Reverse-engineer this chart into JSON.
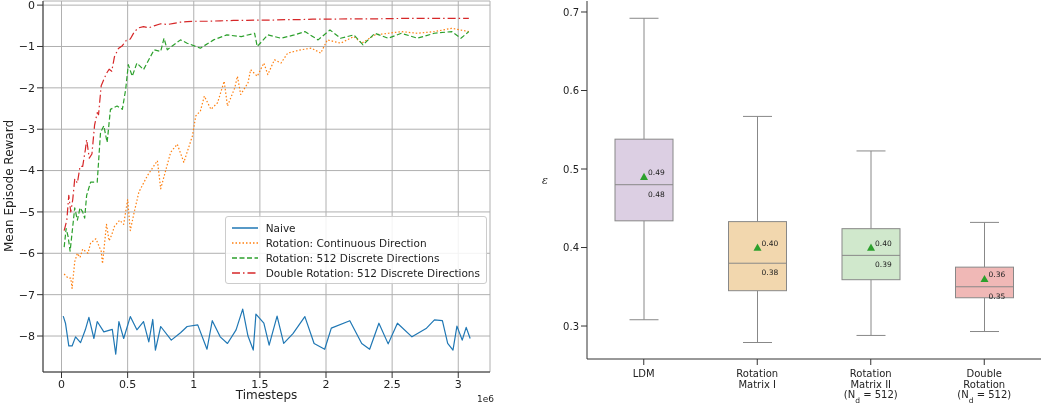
{
  "chart_data": [
    {
      "type": "line",
      "xlabel": "Timesteps",
      "ylabel": "Mean Episode Reward",
      "annotations": [
        "1e6"
      ],
      "xlim": [
        -0.14,
        3.24
      ],
      "xticks": [
        0,
        0.5,
        1,
        1.5,
        2,
        2.5,
        3
      ],
      "ylim": [
        -8.87,
        0.1
      ],
      "yticks": [
        -8,
        -7,
        -6,
        -5,
        -4,
        -3,
        -2,
        -1,
        0
      ],
      "grid": true,
      "legend": "right",
      "series": [
        {
          "name": "Naive",
          "color": "#1f77b4",
          "line_style": "solid",
          "x": [
            0.013,
            0.03,
            0.055,
            0.08,
            0.106,
            0.144,
            0.18,
            0.207,
            0.245,
            0.27,
            0.32,
            0.384,
            0.41,
            0.434,
            0.47,
            0.52,
            0.57,
            0.62,
            0.66,
            0.69,
            0.71,
            0.75,
            0.83,
            0.9,
            0.95,
            1.03,
            1.1,
            1.14,
            1.2,
            1.255,
            1.32,
            1.37,
            1.41,
            1.45,
            1.47,
            1.53,
            1.57,
            1.63,
            1.68,
            1.75,
            1.84,
            1.91,
            1.99,
            2.04,
            2.18,
            2.27,
            2.33,
            2.4,
            2.47,
            2.54,
            2.65,
            2.76,
            2.82,
            2.88,
            2.92,
            2.96,
            2.99,
            3.03,
            3.06,
            3.09
          ],
          "values": [
            -7.52,
            -7.69,
            -8.24,
            -8.24,
            -8.02,
            -8.16,
            -7.85,
            -7.55,
            -8.06,
            -7.65,
            -7.9,
            -7.84,
            -8.44,
            -7.65,
            -8.06,
            -7.53,
            -7.85,
            -7.65,
            -8.14,
            -7.6,
            -8.34,
            -7.77,
            -8.1,
            -7.92,
            -7.77,
            -7.73,
            -8.32,
            -7.63,
            -8.02,
            -8.18,
            -7.85,
            -7.35,
            -8.0,
            -8.34,
            -7.47,
            -7.69,
            -8.22,
            -7.52,
            -8.18,
            -7.94,
            -7.53,
            -8.18,
            -8.32,
            -7.81,
            -7.63,
            -8.18,
            -8.32,
            -7.69,
            -8.19,
            -7.69,
            -8.02,
            -7.81,
            -7.61,
            -7.63,
            -8.18,
            -8.34,
            -7.76,
            -8.1,
            -7.79,
            -8.06
          ]
        },
        {
          "name": "Rotation: Continuous Direction",
          "color": "#ff7f0e",
          "line_style": "dotted",
          "x": [
            0.02,
            0.05,
            0.07,
            0.08,
            0.1,
            0.12,
            0.14,
            0.16,
            0.2,
            0.22,
            0.26,
            0.28,
            0.3,
            0.31,
            0.34,
            0.36,
            0.38,
            0.4,
            0.44,
            0.47,
            0.5,
            0.52,
            0.55,
            0.585,
            0.65,
            0.725,
            0.75,
            0.825,
            0.875,
            0.925,
            0.99,
            1.015,
            1.05,
            1.08,
            1.13,
            1.18,
            1.23,
            1.255,
            1.31,
            1.33,
            1.355,
            1.41,
            1.43,
            1.48,
            1.53,
            1.56,
            1.61,
            1.66,
            1.71,
            1.81,
            1.89,
            1.96,
            2.01,
            2.11,
            2.21,
            2.27,
            2.37,
            2.47,
            2.57,
            2.69,
            2.82,
            2.95,
            3.08
          ],
          "values": [
            -6.5,
            -6.6,
            -6.6,
            -6.85,
            -6.2,
            -6.0,
            -6.1,
            -5.9,
            -6.0,
            -5.75,
            -5.65,
            -5.8,
            -5.95,
            -6.25,
            -5.3,
            -5.7,
            -5.55,
            -5.35,
            -5.2,
            -5.3,
            -4.7,
            -5.45,
            -5.0,
            -4.52,
            -4.12,
            -3.76,
            -4.44,
            -3.56,
            -3.36,
            -3.8,
            -3.16,
            -2.68,
            -2.56,
            -2.2,
            -2.52,
            -2.36,
            -1.84,
            -2.44,
            -2.0,
            -1.72,
            -2.16,
            -1.88,
            -1.56,
            -1.72,
            -1.4,
            -1.68,
            -1.32,
            -1.4,
            -1.16,
            -1.08,
            -1.04,
            -1.16,
            -0.84,
            -0.92,
            -0.76,
            -0.92,
            -0.72,
            -0.68,
            -0.64,
            -0.68,
            -0.64,
            -0.56,
            -0.64
          ]
        },
        {
          "name": "Rotation: 512 Discrete Directions",
          "color": "#2ca02c",
          "line_style": "dashed",
          "x": [
            0.02,
            0.035,
            0.05,
            0.065,
            0.08,
            0.1,
            0.12,
            0.14,
            0.16,
            0.175,
            0.19,
            0.22,
            0.27,
            0.295,
            0.32,
            0.345,
            0.37,
            0.42,
            0.46,
            0.485,
            0.505,
            0.535,
            0.57,
            0.62,
            0.66,
            0.7,
            0.75,
            0.775,
            0.8,
            0.85,
            0.9,
            0.95,
            1.05,
            1.15,
            1.25,
            1.36,
            1.46,
            1.48,
            1.56,
            1.66,
            1.76,
            1.84,
            1.94,
            2.03,
            2.11,
            2.21,
            2.28,
            2.37,
            2.47,
            2.57,
            2.69,
            2.82,
            2.95,
            3.02,
            3.08
          ],
          "values": [
            -5.85,
            -5.4,
            -5.6,
            -5.95,
            -5.5,
            -4.9,
            -5.2,
            -4.9,
            -5.0,
            -5.15,
            -4.6,
            -4.28,
            -4.28,
            -3.08,
            -2.92,
            -3.32,
            -2.52,
            -2.44,
            -2.52,
            -2.04,
            -1.44,
            -1.72,
            -1.4,
            -1.56,
            -1.32,
            -1.08,
            -1.12,
            -0.8,
            -1.08,
            -0.96,
            -0.84,
            -0.92,
            -1.04,
            -0.84,
            -0.72,
            -0.76,
            -0.68,
            -1.0,
            -0.72,
            -0.8,
            -0.72,
            -0.64,
            -0.84,
            -0.6,
            -0.8,
            -0.72,
            -0.96,
            -0.68,
            -0.8,
            -0.68,
            -0.8,
            -0.68,
            -0.64,
            -0.8,
            -0.64
          ]
        },
        {
          "name": "Double Rotation: 512 Discrete Directions",
          "color": "#d62728",
          "line_style": "dashdot",
          "x": [
            0.02,
            0.04,
            0.055,
            0.07,
            0.085,
            0.1,
            0.12,
            0.14,
            0.16,
            0.18,
            0.19,
            0.21,
            0.23,
            0.25,
            0.27,
            0.28,
            0.3,
            0.32,
            0.34,
            0.36,
            0.38,
            0.4,
            0.43,
            0.46,
            0.49,
            0.52,
            0.55,
            0.58,
            0.62,
            0.66,
            0.7,
            0.75,
            0.8,
            0.85,
            0.9,
            0.95,
            1.0,
            1.1,
            1.2,
            1.3,
            1.4,
            1.5,
            1.6,
            1.7,
            1.8,
            1.9,
            2.0,
            2.2,
            2.4,
            2.6,
            2.8,
            3.0,
            3.08
          ],
          "values": [
            -5.45,
            -5.2,
            -4.6,
            -5.0,
            -4.7,
            -4.2,
            -4.3,
            -3.9,
            -3.9,
            -3.5,
            -3.25,
            -3.7,
            -3.6,
            -2.9,
            -2.6,
            -2.65,
            -1.95,
            -1.8,
            -1.65,
            -1.55,
            -1.6,
            -1.25,
            -1.05,
            -0.98,
            -0.85,
            -0.82,
            -0.65,
            -0.55,
            -0.52,
            -0.55,
            -0.5,
            -0.45,
            -0.47,
            -0.44,
            -0.41,
            -0.4,
            -0.39,
            -0.39,
            -0.38,
            -0.37,
            -0.37,
            -0.36,
            -0.36,
            -0.35,
            -0.35,
            -0.34,
            -0.34,
            -0.33,
            -0.33,
            -0.32,
            -0.32,
            -0.32,
            -0.32
          ]
        }
      ]
    },
    {
      "type": "box",
      "ylabel": "ε",
      "categories": [
        "LDM",
        "Rotation\nMatrix I",
        "Rotation\nMatrix II\n(N$_{d}$ = 512)",
        "Double\nRotation\n(N$_{d}$ = 512)"
      ],
      "colors": [
        "#dccfe3",
        "#f2d7ae",
        "#d0e8cc",
        "#f0b8b6"
      ],
      "color": "#2ca02c",
      "marker": "triangle",
      "annotations": [
        "0.49",
        {
          "text": "0.48",
          "x": "LDM",
          "y": 0.48
        },
        "0.40",
        {
          "text": "0.38",
          "x": "Rotation\nMatrix I",
          "y": 0.38
        },
        "0.40",
        {
          "text": "0.39",
          "x": "Rotation\nMatrix II\n(N$_{d}$ = 512)",
          "y": 0.39
        },
        "0.36",
        {
          "text": "0.35",
          "x": "Double\nRotation\n(N$_{d}$ = 512)",
          "y": 0.35
        }
      ],
      "ylim": [
        0.258,
        0.714
      ],
      "yticks": [
        0.3,
        0.4,
        0.5,
        0.6,
        0.7
      ],
      "boxes": [
        {
          "low": 0.308,
          "q1": 0.434,
          "median": 0.48,
          "q3": 0.538,
          "high": 0.692,
          "mean": 0.49
        },
        {
          "low": 0.279,
          "q1": 0.345,
          "median": 0.38,
          "q3": 0.433,
          "high": 0.567,
          "mean": 0.4
        },
        {
          "low": 0.288,
          "q1": 0.359,
          "median": 0.39,
          "q3": 0.424,
          "high": 0.523,
          "mean": 0.4
        },
        {
          "low": 0.293,
          "q1": 0.336,
          "median": 0.35,
          "q3": 0.375,
          "high": 0.432,
          "mean": 0.36
        }
      ]
    }
  ]
}
